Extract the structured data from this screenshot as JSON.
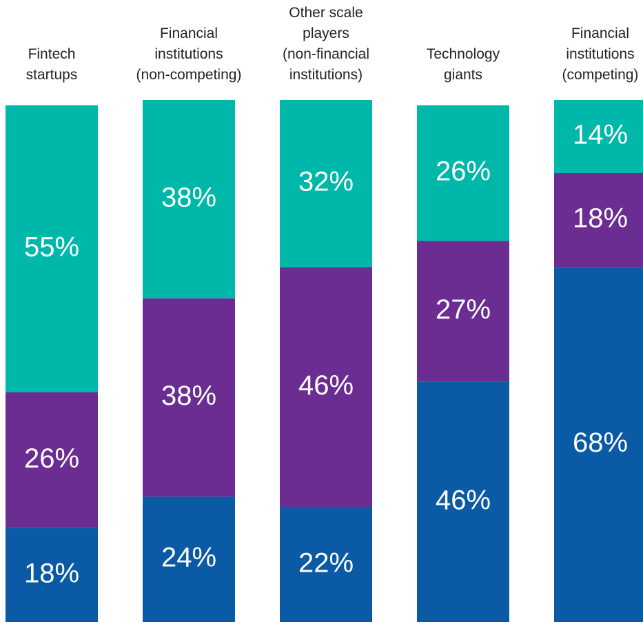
{
  "chart_data": {
    "type": "stacked_bar",
    "categories": [
      "Fintech\nstartups",
      "Financial\ninstitutions\n(non-competing)",
      "Other scale\nplayers\n(non-financial\ninstitutions)",
      "Technology\ngiants",
      "Financial\ninstitutions\n(competing)"
    ],
    "ylim": [
      0,
      100
    ],
    "series": [
      {
        "color": "#0a5aa5",
        "values": [
          18,
          24,
          22,
          46,
          68
        ],
        "value_labels": [
          "18%",
          "24%",
          "22%",
          "46%",
          "68%"
        ]
      },
      {
        "color": "#6b2d91",
        "values": [
          26,
          38,
          46,
          27,
          18
        ],
        "value_labels": [
          "26%",
          "38%",
          "46%",
          "27%",
          "18%"
        ]
      },
      {
        "color": "#00b8a9",
        "values": [
          55,
          38,
          32,
          26,
          14
        ],
        "value_labels": [
          "55%",
          "38%",
          "32%",
          "26%",
          "14%"
        ]
      }
    ]
  }
}
